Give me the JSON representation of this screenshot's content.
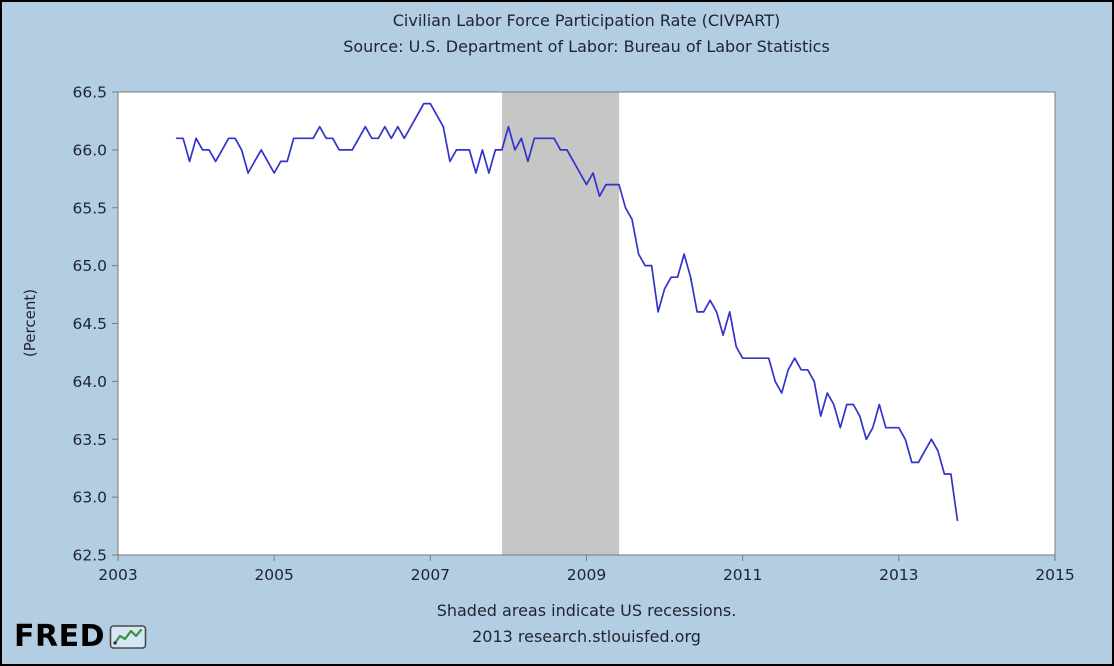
{
  "header": {
    "title": "Civilian Labor Force Participation Rate (CIVPART)",
    "subtitle": "Source: U.S. Department of Labor: Bureau of Labor Statistics"
  },
  "footer": {
    "note": "Shaded areas indicate US recessions.",
    "credit": "2013 research.stlouisfed.org"
  },
  "logo": {
    "text": "FRED",
    "icon": "line-chart-icon"
  },
  "colors": {
    "page_background": "#B3CDE3",
    "plot_background": "#FFFFFF",
    "plot_border": "#7A7A7A",
    "line": "#3333CC",
    "recession_band": "#C6C6C6",
    "text": "#1F2430"
  },
  "chart_data": {
    "type": "line",
    "title": "Civilian Labor Force Participation Rate (CIVPART)",
    "subtitle": "Source: U.S. Department of Labor: Bureau of Labor Statistics",
    "xlabel": "",
    "ylabel": "(Percent)",
    "xlim": [
      2003,
      2015
    ],
    "ylim": [
      62.5,
      66.5
    ],
    "x_ticks": [
      2003,
      2005,
      2007,
      2009,
      2011,
      2013,
      2015
    ],
    "y_ticks": [
      62.5,
      63.0,
      63.5,
      64.0,
      64.5,
      65.0,
      65.5,
      66.0,
      66.5
    ],
    "grid": false,
    "legend_position": "none",
    "recession_bands": [
      {
        "start": 2007.917,
        "end": 2009.417
      }
    ],
    "series": [
      {
        "name": "CIVPART",
        "frequency": "monthly",
        "x_start": 2003.75,
        "x_step": 0.0833333,
        "values": [
          66.1,
          66.1,
          65.9,
          66.1,
          66.0,
          66.0,
          65.9,
          66.0,
          66.1,
          66.1,
          66.0,
          65.8,
          65.9,
          66.0,
          65.9,
          65.8,
          65.9,
          65.9,
          66.1,
          66.1,
          66.1,
          66.1,
          66.2,
          66.1,
          66.1,
          66.0,
          66.0,
          66.0,
          66.1,
          66.2,
          66.1,
          66.1,
          66.2,
          66.1,
          66.2,
          66.1,
          66.2,
          66.3,
          66.4,
          66.4,
          66.3,
          66.2,
          65.9,
          66.0,
          66.0,
          66.0,
          65.8,
          66.0,
          65.8,
          66.0,
          66.0,
          66.2,
          66.0,
          66.1,
          65.9,
          66.1,
          66.1,
          66.1,
          66.1,
          66.0,
          66.0,
          65.9,
          65.8,
          65.7,
          65.8,
          65.6,
          65.7,
          65.7,
          65.7,
          65.5,
          65.4,
          65.1,
          65.0,
          65.0,
          64.6,
          64.8,
          64.9,
          64.9,
          65.1,
          64.9,
          64.6,
          64.6,
          64.7,
          64.6,
          64.4,
          64.6,
          64.3,
          64.2,
          64.2,
          64.2,
          64.2,
          64.2,
          64.0,
          63.9,
          64.1,
          64.2,
          64.1,
          64.1,
          64.0,
          63.7,
          63.9,
          63.8,
          63.6,
          63.8,
          63.8,
          63.7,
          63.5,
          63.6,
          63.8,
          63.6,
          63.6,
          63.6,
          63.5,
          63.3,
          63.3,
          63.4,
          63.5,
          63.4,
          63.2,
          63.2,
          62.8
        ]
      }
    ]
  }
}
